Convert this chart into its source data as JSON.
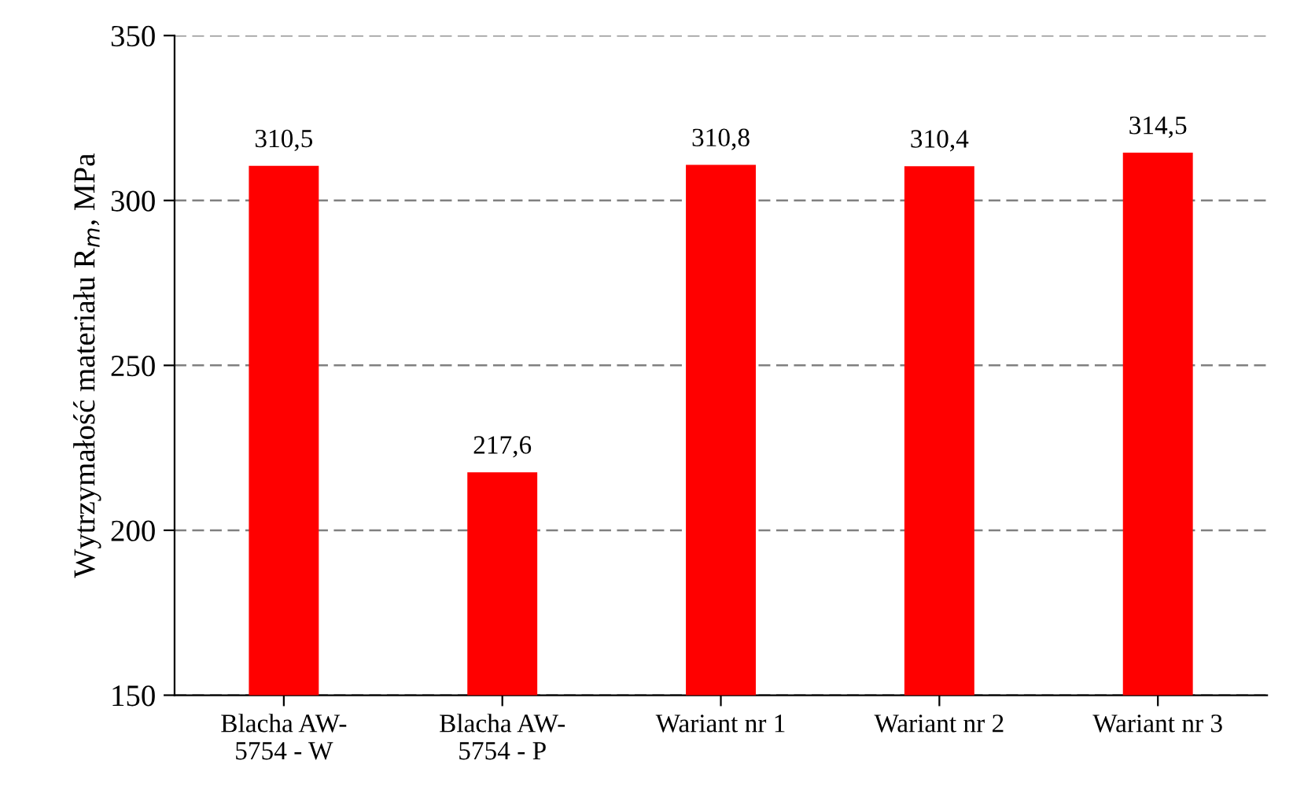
{
  "chart_data": {
    "type": "bar",
    "categories": [
      "Blacha AW-\n5754 - W",
      "Blacha AW-\n5754 - P",
      "Wariant nr 1",
      "Wariant nr 2",
      "Wariant nr 3"
    ],
    "values": [
      310.5,
      217.6,
      310.8,
      310.4,
      314.5
    ],
    "value_labels": [
      "310,5",
      "217,6",
      "310,8",
      "310,4",
      "314,5"
    ],
    "color": "#ff0000",
    "ylabel": "Wytrzymałość materiału R$_{m}$, MPa",
    "ylim": [
      150,
      350
    ],
    "yticks": [
      150,
      200,
      250,
      300,
      350
    ],
    "grid": "y"
  }
}
